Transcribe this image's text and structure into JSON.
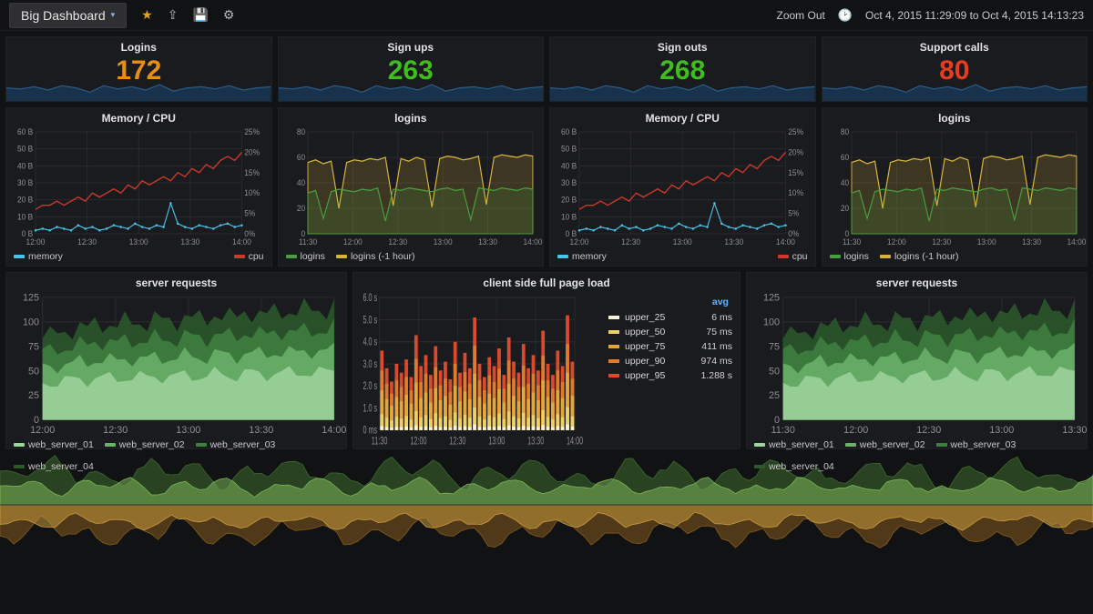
{
  "nav": {
    "title": "Big Dashboard",
    "zoom_out": "Zoom Out",
    "time_range": "Oct 4, 2015 11:29:09 to Oct 4, 2015 14:13:23"
  },
  "colors": {
    "orange": "#e58f13",
    "green_num": "#3fbd1f",
    "red_num": "#e83c22",
    "spark_line": "#2c5d8a",
    "spark_fill": "#1b3954",
    "panel_bg": "#1a1b1e",
    "grid": "#2a2a2c",
    "axis_text": "#8f8f8f",
    "cpu_red": "#cb3a2a",
    "mem_blue": "#4cc3e6",
    "login_green": "#4a9c3f",
    "login_yellow": "#d6b23e",
    "ws1": "#7fbf7f",
    "ws2": "#5fa05f",
    "ws3": "#3f803f",
    "ws4": "#2f602f",
    "u25": "#f5f3d7",
    "u50": "#e9d16c",
    "u75": "#e0a83d",
    "u90": "#e07a2d",
    "u95": "#da4a2d",
    "butter_top_dark": "#3d6a2e",
    "butter_top_light": "#7bb658",
    "butter_bot_dark": "#855a1e",
    "butter_bot_light": "#c99a3e"
  },
  "stats": [
    {
      "title": "Logins",
      "value": "172",
      "color": "#e58f13"
    },
    {
      "title": "Sign ups",
      "value": "263",
      "color": "#3fbd1f"
    },
    {
      "title": "Sign outs",
      "value": "268",
      "color": "#3fbd1f"
    },
    {
      "title": "Support calls",
      "value": "80",
      "color": "#e83c22"
    }
  ],
  "sparkline": {
    "fill": "#17324a",
    "stroke": "#2c5d8a",
    "points": [
      12,
      11,
      13,
      10,
      14,
      12,
      8,
      14,
      11,
      13,
      10,
      15,
      9,
      12,
      13,
      11,
      14,
      10,
      12,
      13
    ]
  },
  "row2_time_ticks": [
    "12:00",
    "12:30",
    "13:00",
    "13:30",
    "14:00"
  ],
  "row2_time_ticks_b": [
    "11:30",
    "12:00",
    "12:30",
    "13:00",
    "13:30",
    "14:00"
  ],
  "memcpu": {
    "title": "Memory / CPU",
    "left_ticks": [
      "0 B",
      "10 B",
      "20 B",
      "30 B",
      "40 B",
      "50 B",
      "60 B"
    ],
    "right_ticks": [
      "0%",
      "5%",
      "10%",
      "15%",
      "20%",
      "25%"
    ],
    "legend_left": [
      {
        "label": "memory",
        "color": "#4cc3e6"
      }
    ],
    "legend_right": [
      {
        "label": "cpu",
        "color": "#cb3a2a"
      }
    ],
    "cpu": [
      6,
      7,
      7,
      8,
      7,
      8,
      9,
      8,
      10,
      9,
      10,
      11,
      10,
      12,
      11,
      13,
      12,
      13,
      14,
      13,
      15,
      14,
      16,
      15,
      17,
      16,
      18,
      19,
      18,
      20
    ],
    "mem": [
      2,
      3,
      2,
      4,
      3,
      2,
      5,
      3,
      4,
      2,
      3,
      5,
      4,
      3,
      6,
      4,
      3,
      5,
      4,
      18,
      6,
      4,
      3,
      5,
      4,
      3,
      5,
      6,
      4,
      5
    ]
  },
  "logins_panel": {
    "title": "logins",
    "left_ticks": [
      "0",
      "20",
      "40",
      "60",
      "80"
    ],
    "legend": [
      {
        "label": "logins",
        "color": "#4a9c3f"
      },
      {
        "label": "logins (-1 hour)",
        "color": "#d6b23e"
      }
    ],
    "green": [
      32,
      34,
      12,
      33,
      35,
      34,
      33,
      35,
      34,
      36,
      10,
      35,
      34,
      36,
      35,
      34,
      33,
      35,
      36,
      34,
      35,
      11,
      36,
      35,
      34,
      36,
      35,
      34,
      36,
      35
    ],
    "yellow": [
      56,
      58,
      55,
      57,
      20,
      56,
      58,
      57,
      59,
      58,
      60,
      22,
      59,
      57,
      60,
      58,
      21,
      59,
      61,
      60,
      58,
      59,
      61,
      23,
      60,
      62,
      61,
      60,
      62,
      61
    ]
  },
  "server_requests": {
    "title": "server requests",
    "left_ticks": [
      "0",
      "25",
      "50",
      "75",
      "100",
      "125"
    ],
    "time_ticks": [
      "12:00",
      "12:30",
      "13:00",
      "13:30",
      "14:00"
    ],
    "time_ticks_right": [
      "11:30",
      "12:00",
      "12:30",
      "13:00",
      "13:30"
    ],
    "legend": [
      {
        "label": "web_server_01",
        "color": "#9ed49e"
      },
      {
        "label": "web_server_02",
        "color": "#6bb36b"
      },
      {
        "label": "web_server_03",
        "color": "#3f803f"
      },
      {
        "label": "web_server_04",
        "color": "#2c5a2c"
      }
    ],
    "base": [
      35,
      38,
      36,
      40,
      37,
      42,
      38,
      44,
      40,
      43,
      39,
      45,
      41,
      44,
      40,
      46,
      42,
      45,
      41,
      47,
      43,
      46,
      42,
      48,
      44,
      47,
      43,
      49,
      45,
      48,
      44,
      50,
      46,
      49,
      45,
      51,
      47,
      50,
      46,
      52
    ]
  },
  "pageload": {
    "title": "client side full page load",
    "left_ticks": [
      "0 ms",
      "1.0 s",
      "2.0 s",
      "3.0 s",
      "4.0 s",
      "5.0 s",
      "6.0 s"
    ],
    "time_ticks": [
      "11:30",
      "12:00",
      "12:30",
      "13:00",
      "13:30",
      "14:00"
    ],
    "legend_header": "avg",
    "series": [
      {
        "label": "upper_25",
        "color": "#f5f3d7",
        "avg": "6 ms"
      },
      {
        "label": "upper_50",
        "color": "#e9d16c",
        "avg": "75 ms"
      },
      {
        "label": "upper_75",
        "color": "#e0a83d",
        "avg": "411 ms"
      },
      {
        "label": "upper_90",
        "color": "#e07a2d",
        "avg": "974 ms"
      },
      {
        "label": "upper_95",
        "color": "#da4a2d",
        "avg": "1.288 s"
      }
    ],
    "bars95": [
      3.6,
      2.8,
      2.2,
      3.0,
      2.6,
      3.2,
      2.4,
      4.3,
      2.9,
      3.4,
      2.5,
      3.8,
      2.7,
      3.1,
      2.3,
      4.0,
      2.6,
      3.5,
      2.8,
      5.1,
      3.0,
      2.4,
      3.3,
      2.9,
      3.7,
      2.5,
      4.2,
      3.1,
      2.6,
      3.9,
      2.8,
      3.4,
      2.7,
      4.5,
      3.0,
      2.5,
      3.6,
      2.9,
      5.2,
      3.1
    ],
    "ratios": {
      "u25": 0.05,
      "u50": 0.2,
      "u75": 0.5,
      "u90": 0.75
    }
  },
  "panel_heights": {
    "row2": 175,
    "row3": 195
  }
}
